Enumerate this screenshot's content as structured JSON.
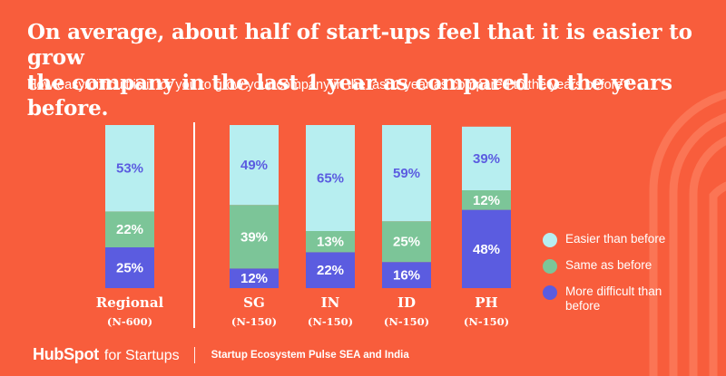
{
  "colors": {
    "background": "#f85d3c",
    "easier": "#b7eef0",
    "same": "#7cc598",
    "difficult": "#5b5ce0",
    "easier_text": "#5b5ce0",
    "same_text": "#ffffff",
    "difficult_text": "#ffffff"
  },
  "title_line1": "On average, about half of start-ups feel that it is easier to grow",
  "title_line2": "the company in the last 1 year as compared to the years before.",
  "subtitle": "How easy/difficult is it for you to grow your company in the last 1 year as compared to the years before?",
  "chart_data": {
    "type": "bar",
    "stacked": true,
    "categories": [
      "Regional",
      "SG",
      "IN",
      "ID",
      "PH"
    ],
    "sample_sizes": [
      "(N-600)",
      "(N-150)",
      "(N-150)",
      "(N-150)",
      "(N-150)"
    ],
    "series": [
      {
        "name": "More difficult than before",
        "key": "difficult",
        "values": [
          25,
          12,
          22,
          16,
          48
        ]
      },
      {
        "name": "Same as before",
        "key": "same",
        "values": [
          22,
          39,
          13,
          25,
          12
        ]
      },
      {
        "name": "Easier than before",
        "key": "easier",
        "values": [
          53,
          49,
          65,
          59,
          39
        ]
      }
    ],
    "value_suffix": "%",
    "ylim": [
      0,
      100
    ],
    "legend": [
      "Easier than before",
      "Same as before",
      "More difficult than before"
    ],
    "legend_position": "right"
  },
  "footer": {
    "logo_brand": "HubSpot",
    "logo_suffix": "for Startups",
    "note": "Startup Ecosystem Pulse SEA and India"
  }
}
